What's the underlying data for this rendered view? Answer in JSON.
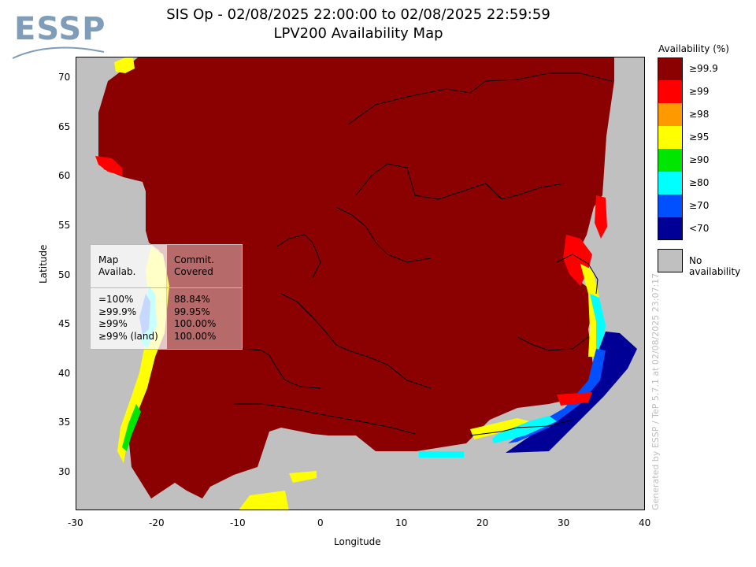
{
  "logo": {
    "text": "ESSP"
  },
  "title": {
    "line1": "SIS Op - 02/08/2025 22:00:00 to 02/08/2025 22:59:59",
    "line2": "LPV200 Availability Map"
  },
  "axes": {
    "xlabel": "Longitude",
    "ylabel": "Latitude",
    "x_ticks": [
      "-30",
      "-20",
      "-10",
      "0",
      "10",
      "20",
      "30",
      "40"
    ],
    "y_ticks": [
      "70",
      "65",
      "60",
      "55",
      "50",
      "45",
      "40",
      "35",
      "30"
    ],
    "x_range": [
      -30,
      40
    ],
    "y_range": [
      26,
      72
    ]
  },
  "legend": {
    "title": "Availability (%)",
    "items": [
      {
        "label": "≥99.9",
        "color": "#8b0000"
      },
      {
        "label": "≥99",
        "color": "#ff0000"
      },
      {
        "label": "≥98",
        "color": "#ff9900"
      },
      {
        "label": "≥95",
        "color": "#ffff00"
      },
      {
        "label": "≥90",
        "color": "#00e600"
      },
      {
        "label": "≥80",
        "color": "#00ffff"
      },
      {
        "label": "≥70",
        "color": "#0050ff"
      },
      {
        "label": "<70",
        "color": "#000096"
      }
    ],
    "no_availability_label": "No availability",
    "no_availability_color": "#c0c0c0"
  },
  "stats_table": {
    "header_left": "Map\nAvailab.",
    "header_right": "Commit.\nCovered",
    "rows": [
      {
        "left": "=100%",
        "right": "88.84%"
      },
      {
        "left": "≥99.9%",
        "right": "99.95%"
      },
      {
        "left": "≥99%",
        "right": "100.00%"
      },
      {
        "left": "≥99% (land)",
        "right": "100.00%"
      }
    ]
  },
  "generated_by": "Generated by ESSP / TeP 5.7.1 at 02/08/2025 23:07:17"
}
